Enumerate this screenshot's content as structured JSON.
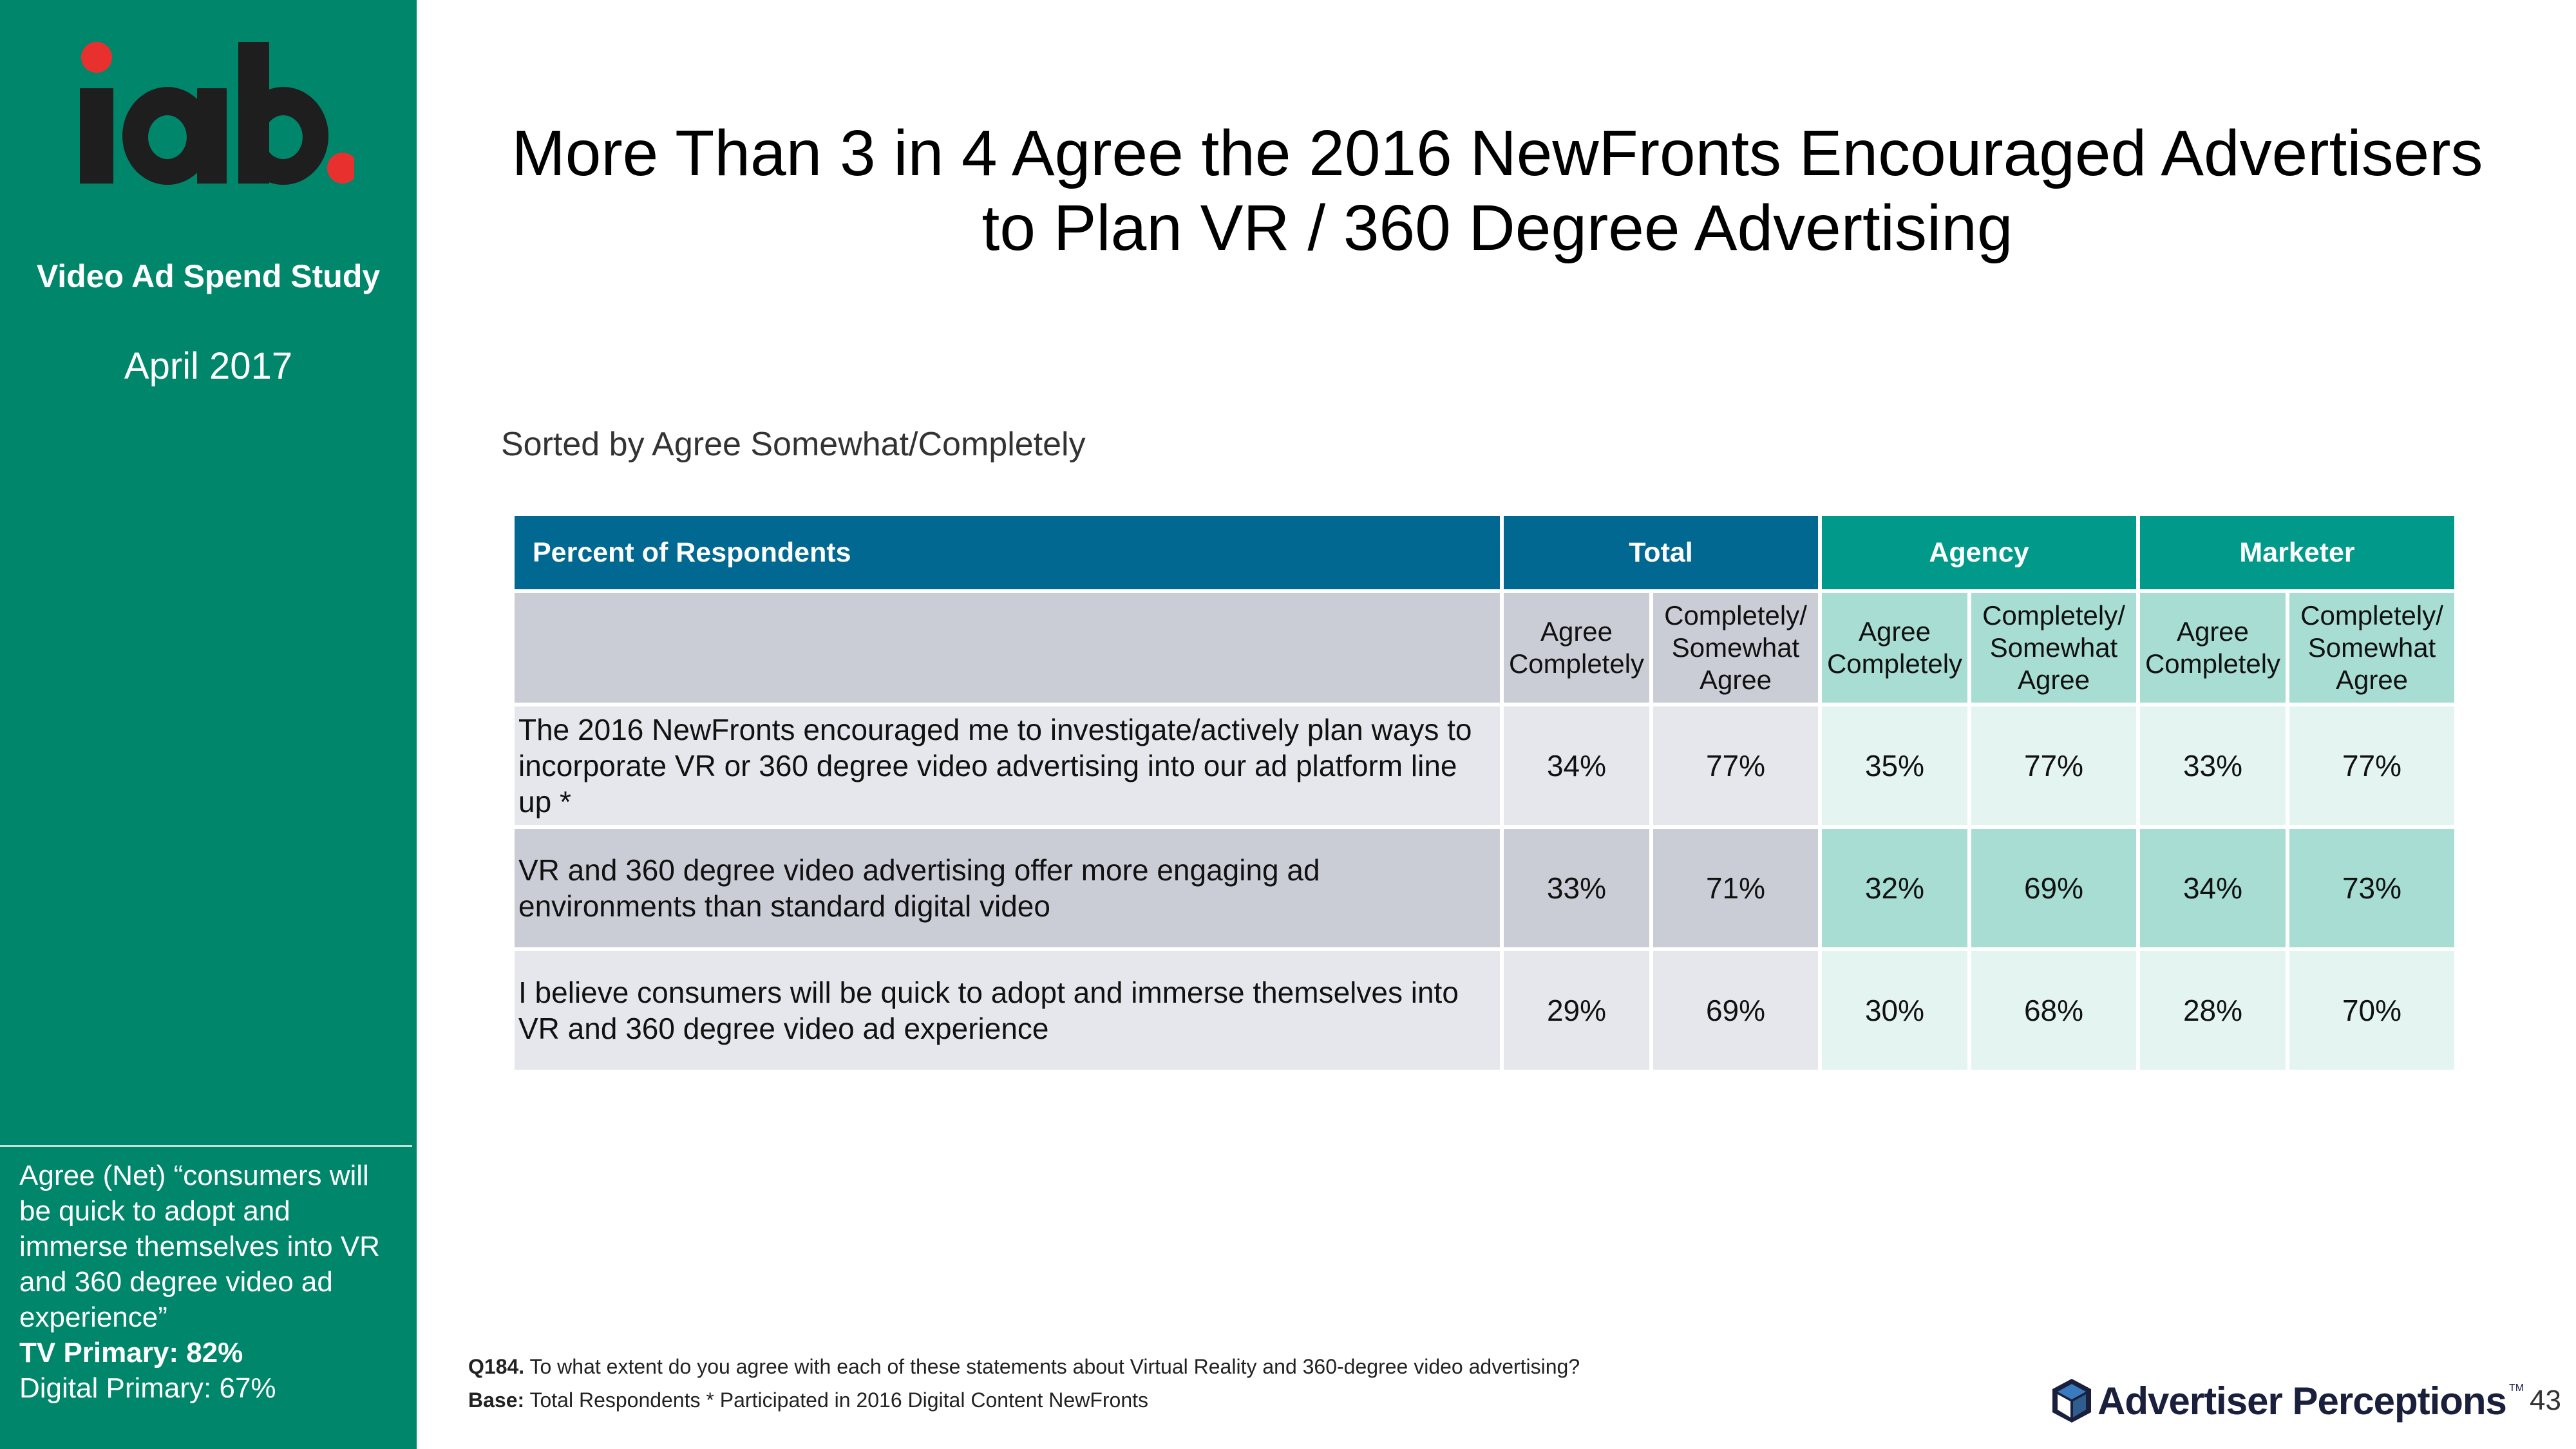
{
  "sidebar": {
    "logo_text": "iab.",
    "study_name": "Video Ad Spend Study",
    "date": "April 2017",
    "callout": {
      "quote": "Agree (Net) “consumers will be quick to adopt and immerse themselves into VR and 360 degree video ad experience”",
      "tv_primary": "TV Primary: 82%",
      "digital_primary": "Digital Primary: 67%"
    }
  },
  "title": {
    "line1": "More Than 3 in 4 Agree the 2016 NewFronts Encouraged Advertisers",
    "line2": "to Plan VR / 360 Degree Advertising"
  },
  "subtitle": "Sorted by Agree Somewhat/Completely",
  "table": {
    "header": {
      "label": "Percent of Respondents",
      "groups": [
        "Total",
        "Agency",
        "Marketer"
      ]
    },
    "subheaders": {
      "agree_completely": "Agree Completely",
      "completely_somewhat_1": "Completely/",
      "completely_somewhat_2": "Somewhat",
      "completely_somewhat_3": "Agree"
    },
    "rows": [
      {
        "statement": "The 2016 NewFronts encouraged me to investigate/actively plan ways to incorporate VR or 360 degree video advertising into our ad platform line up *",
        "values": [
          "34%",
          "77%",
          "35%",
          "77%",
          "33%",
          "77%"
        ]
      },
      {
        "statement": "VR and 360 degree video advertising offer more engaging ad environments than standard digital video",
        "values": [
          "33%",
          "71%",
          "32%",
          "69%",
          "34%",
          "73%"
        ]
      },
      {
        "statement": "I believe consumers will be quick to adopt and immerse themselves into VR and 360 degree video ad experience",
        "values": [
          "29%",
          "69%",
          "30%",
          "68%",
          "28%",
          "70%"
        ]
      }
    ]
  },
  "footnote": {
    "q_label": "Q184.",
    "q_text": "To what extent do you agree with each of these statements about Virtual Reality and 360-degree video advertising?",
    "base_label": "Base:",
    "base_text": "Total Respondents * Participated in 2016 Digital Content NewFronts"
  },
  "brand": {
    "name": "Advertiser Perceptions",
    "tm": "TM"
  },
  "page_number": "43",
  "colors": {
    "sidebar": "#00866a",
    "header_blue": "#006891",
    "header_teal": "#00998a",
    "logo_dot": "#e8312f"
  }
}
